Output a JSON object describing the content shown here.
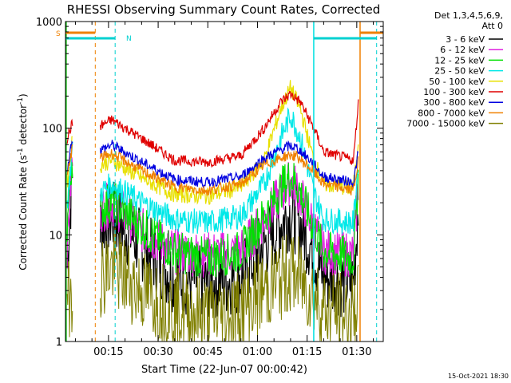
{
  "chart_data": {
    "type": "line",
    "title": "RHESSI Observing Summary Count Rates, Corrected",
    "xlabel": "Start Time (22-Jun-07 00:00:42)",
    "ylabel": "Corrected Count Rate (s",
    "ylabel_sup": "-1",
    "ylabel_tail": " detector",
    "ylabel_tail_sup": "-1",
    "ylabel_close": ")",
    "y_scale": "log",
    "ylim": [
      1,
      1000
    ],
    "xlim_minutes": [
      2,
      98
    ],
    "x_ticks": [
      {
        "m": 15,
        "label": "00:15"
      },
      {
        "m": 30,
        "label": "00:30"
      },
      {
        "m": 45,
        "label": "00:45"
      },
      {
        "m": 60,
        "label": "01:00"
      },
      {
        "m": 75,
        "label": "01:15"
      },
      {
        "m": 90,
        "label": "01:30"
      }
    ],
    "y_ticks": [
      {
        "v": 1,
        "label": "1"
      },
      {
        "v": 10,
        "label": "10"
      },
      {
        "v": 100,
        "label": "100"
      },
      {
        "v": 1000,
        "label": "1000"
      }
    ],
    "legend": {
      "position": "right",
      "header": [
        "Det 1,3,4,5,6,9,",
        "Att 0"
      ],
      "entries": [
        {
          "label": "3 - 6 keV",
          "color": "#000000"
        },
        {
          "label": "6 - 12 keV",
          "color": "#e020e0"
        },
        {
          "label": "12 - 25 keV",
          "color": "#00e000"
        },
        {
          "label": "25 - 50 keV",
          "color": "#00e8e8"
        },
        {
          "label": "50 - 100 keV",
          "color": "#e8e000"
        },
        {
          "label": "100 - 300 keV",
          "color": "#e00000"
        },
        {
          "label": "300 - 800 keV",
          "color": "#0000e0"
        },
        {
          "label": "800 - 7000 keV",
          "color": "#f08000"
        },
        {
          "label": "7000 - 15000 keV",
          "color": "#808000"
        }
      ]
    },
    "flags": [
      {
        "label": "S",
        "color": "#f08000",
        "segments": [
          [
            2,
            11
          ],
          [
            91,
            98
          ]
        ]
      },
      {
        "label": "N",
        "color": "#00d0d0",
        "segments": [
          [
            2,
            17
          ],
          [
            77,
            96
          ]
        ]
      }
    ],
    "dashed_lines": [
      {
        "m": 11,
        "color": "#f08000"
      },
      {
        "m": 17,
        "color": "#00d0d0"
      },
      {
        "m": 96,
        "color": "#00d0d0"
      }
    ],
    "solid_lines": [
      {
        "m": 2.2,
        "color": "#00c000"
      },
      {
        "m": 77,
        "color": "#00e0e0"
      },
      {
        "m": 91,
        "color": "#f08000"
      }
    ],
    "series": [
      {
        "name": "3 - 6 keV",
        "color": "#000000",
        "values": [
          [
            2.5,
            5
          ],
          [
            4,
            40
          ],
          [
            12.5,
            12
          ],
          [
            16,
            15
          ],
          [
            25,
            8
          ],
          [
            35,
            4
          ],
          [
            45,
            3.5
          ],
          [
            55,
            4
          ],
          [
            62,
            8
          ],
          [
            68,
            14
          ],
          [
            70,
            16
          ],
          [
            72,
            14
          ],
          [
            76,
            8
          ],
          [
            80,
            4
          ],
          [
            89,
            3.5
          ],
          [
            90.5,
            20
          ]
        ]
      },
      {
        "name": "6 - 12 keV",
        "color": "#e020e0",
        "values": [
          [
            2.5,
            8
          ],
          [
            4,
            50
          ],
          [
            12.5,
            17
          ],
          [
            16,
            20
          ],
          [
            25,
            11
          ],
          [
            35,
            7
          ],
          [
            45,
            6.5
          ],
          [
            55,
            7
          ],
          [
            62,
            14
          ],
          [
            68,
            26
          ],
          [
            70,
            32
          ],
          [
            72,
            27
          ],
          [
            76,
            14
          ],
          [
            80,
            7
          ],
          [
            89,
            6.5
          ],
          [
            90.5,
            30
          ]
        ]
      },
      {
        "name": "12 - 25 keV",
        "color": "#00e000",
        "values": [
          [
            2.5,
            12
          ],
          [
            4,
            55
          ],
          [
            12.5,
            17
          ],
          [
            16,
            21
          ],
          [
            25,
            12
          ],
          [
            35,
            7
          ],
          [
            45,
            6
          ],
          [
            55,
            7
          ],
          [
            62,
            15
          ],
          [
            68,
            30
          ],
          [
            70,
            35
          ],
          [
            72,
            30
          ],
          [
            76,
            14
          ],
          [
            80,
            7
          ],
          [
            89,
            6
          ],
          [
            90.5,
            40
          ]
        ]
      },
      {
        "name": "25 - 50 keV",
        "color": "#00e8e8",
        "values": [
          [
            2.5,
            20
          ],
          [
            4,
            60
          ],
          [
            12.5,
            25
          ],
          [
            16,
            30
          ],
          [
            25,
            20
          ],
          [
            35,
            14
          ],
          [
            45,
            13
          ],
          [
            55,
            15
          ],
          [
            62,
            30
          ],
          [
            67,
            80
          ],
          [
            70,
            135
          ],
          [
            73,
            80
          ],
          [
            77,
            25
          ],
          [
            80,
            14
          ],
          [
            89,
            13
          ],
          [
            90.5,
            50
          ]
        ]
      },
      {
        "name": "50 - 100 keV",
        "color": "#e8e000",
        "values": [
          [
            2.5,
            30
          ],
          [
            4,
            75
          ],
          [
            12.5,
            45
          ],
          [
            16,
            50
          ],
          [
            25,
            34
          ],
          [
            35,
            24
          ],
          [
            45,
            23
          ],
          [
            55,
            28
          ],
          [
            62,
            50
          ],
          [
            67,
            150
          ],
          [
            70,
            240
          ],
          [
            73,
            150
          ],
          [
            77,
            50
          ],
          [
            80,
            30
          ],
          [
            89,
            27
          ],
          [
            90.5,
            80
          ]
        ]
      },
      {
        "name": "100 - 300 keV",
        "color": "#e00000",
        "values": [
          [
            2.5,
            80
          ],
          [
            4,
            110
          ],
          [
            12.5,
            105
          ],
          [
            16,
            120
          ],
          [
            25,
            80
          ],
          [
            35,
            50
          ],
          [
            45,
            48
          ],
          [
            55,
            55
          ],
          [
            62,
            100
          ],
          [
            67,
            175
          ],
          [
            70,
            210
          ],
          [
            73,
            175
          ],
          [
            77,
            100
          ],
          [
            80,
            60
          ],
          [
            89,
            50
          ],
          [
            90.5,
            180
          ]
        ]
      },
      {
        "name": "300 - 800 keV",
        "color": "#0000e0",
        "values": [
          [
            2.5,
            40
          ],
          [
            4,
            80
          ],
          [
            12.5,
            62
          ],
          [
            16,
            70
          ],
          [
            25,
            48
          ],
          [
            35,
            33
          ],
          [
            45,
            31
          ],
          [
            55,
            35
          ],
          [
            62,
            52
          ],
          [
            68,
            65
          ],
          [
            70,
            68
          ],
          [
            72,
            65
          ],
          [
            76,
            50
          ],
          [
            80,
            35
          ],
          [
            89,
            31
          ],
          [
            90.5,
            60
          ]
        ]
      },
      {
        "name": "800 - 7000 keV",
        "color": "#f08000",
        "values": [
          [
            2.5,
            35
          ],
          [
            4,
            65
          ],
          [
            12.5,
            53
          ],
          [
            16,
            58
          ],
          [
            25,
            40
          ],
          [
            35,
            28
          ],
          [
            45,
            26
          ],
          [
            55,
            30
          ],
          [
            62,
            45
          ],
          [
            68,
            54
          ],
          [
            70,
            56
          ],
          [
            72,
            54
          ],
          [
            76,
            42
          ],
          [
            80,
            30
          ],
          [
            89,
            26
          ],
          [
            90.5,
            50
          ]
        ]
      },
      {
        "name": "7000 - 15000 keV",
        "color": "#808000",
        "values": [
          [
            2.5,
            2.5
          ],
          [
            4,
            3
          ],
          [
            12.5,
            4
          ],
          [
            16,
            5
          ],
          [
            25,
            3
          ],
          [
            35,
            2
          ],
          [
            45,
            1.7
          ],
          [
            55,
            2
          ],
          [
            62,
            3
          ],
          [
            68,
            4
          ],
          [
            70,
            4.5
          ],
          [
            72,
            4
          ],
          [
            76,
            3
          ],
          [
            80,
            2
          ],
          [
            89,
            1.7
          ],
          [
            90.5,
            3
          ]
        ]
      }
    ]
  },
  "footer": {
    "date": "15-Oct-2021 18:30"
  }
}
